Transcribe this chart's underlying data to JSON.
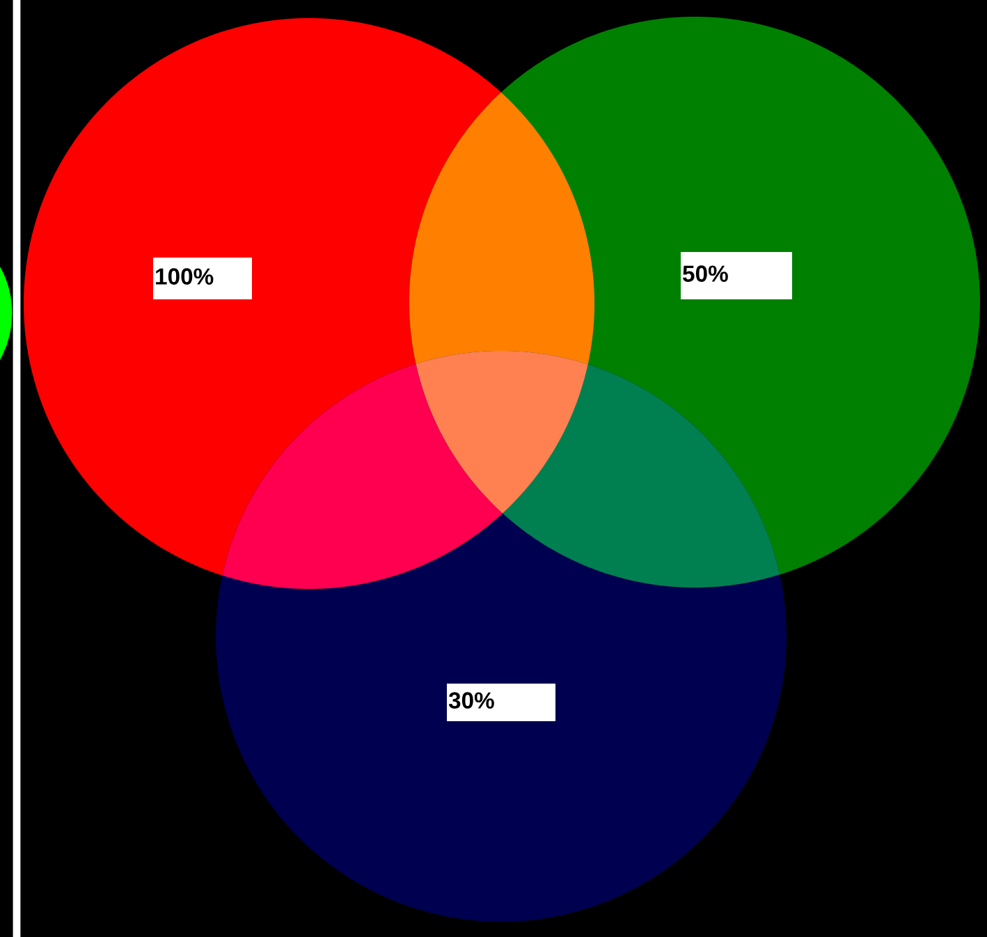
{
  "chart_data": {
    "type": "other",
    "categories": [
      null,
      null,
      null
    ],
    "values": [
      100,
      50,
      30
    ],
    "value_labels": [
      "100%",
      "50%",
      "30%"
    ],
    "colors": [
      "#ff0000",
      "#008000",
      "#000050"
    ]
  }
}
